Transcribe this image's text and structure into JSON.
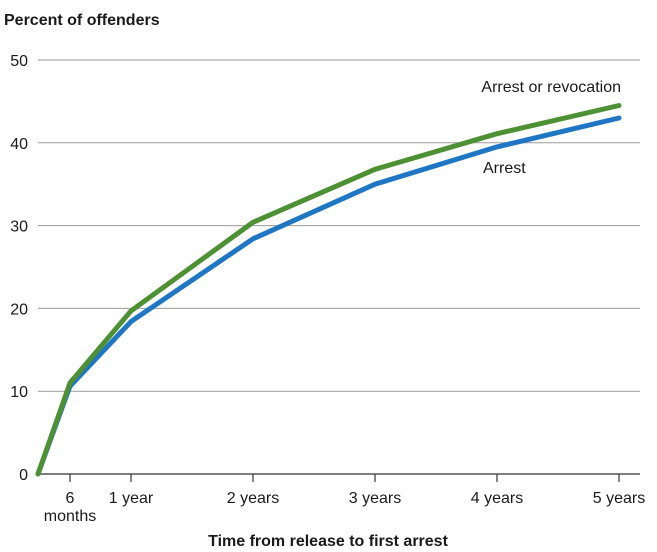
{
  "chart_data": {
    "type": "line",
    "title": "",
    "ylabel": "Percent of offenders",
    "xlabel": "Time from release to first arrest",
    "ylim": [
      0,
      50
    ],
    "yticks": [
      0,
      10,
      20,
      30,
      40,
      50
    ],
    "grid": "horizontal",
    "x": [
      0,
      6,
      12,
      24,
      36,
      48,
      60
    ],
    "x_ticks": [
      {
        "value": 6,
        "line1": "6",
        "line2": "months"
      },
      {
        "value": 12,
        "line1": "1 year",
        "line2": ""
      },
      {
        "value": 24,
        "line1": "2 years",
        "line2": ""
      },
      {
        "value": 36,
        "line1": "3 years",
        "line2": ""
      },
      {
        "value": 48,
        "line1": "4 years",
        "line2": ""
      },
      {
        "value": 60,
        "line1": "5 years",
        "line2": ""
      }
    ],
    "series": [
      {
        "name": "Arrest",
        "color": "#1f77c4",
        "values": [
          0,
          10.6,
          18.4,
          28.4,
          35.0,
          39.5,
          43.0
        ]
      },
      {
        "name": "Arrest or revocation",
        "color": "#4d9134",
        "values": [
          0,
          11.0,
          19.7,
          30.4,
          36.8,
          41.1,
          44.5
        ]
      }
    ]
  }
}
